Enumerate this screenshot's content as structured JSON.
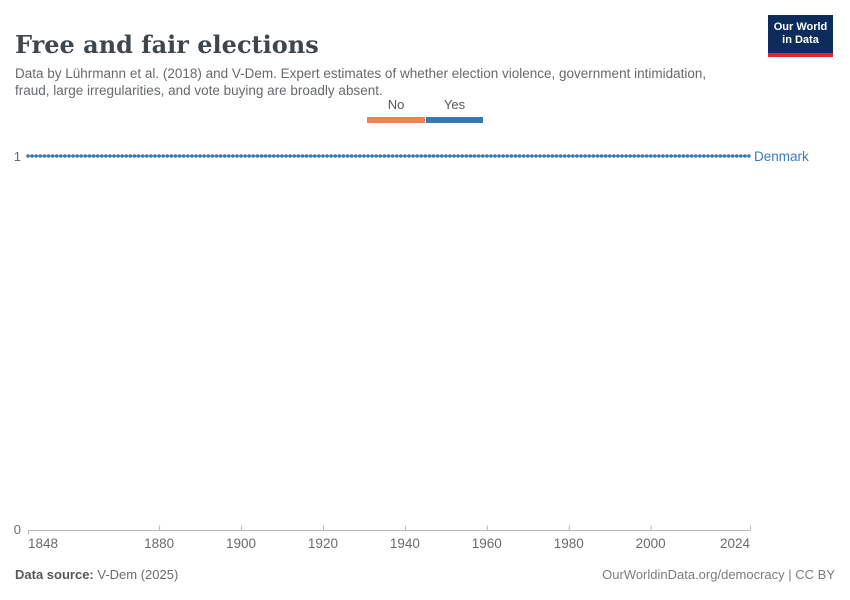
{
  "header": {
    "title": "Free and fair elections",
    "subtitle": "Data by Lührmann et al. (2018) and V-Dem. Expert estimates of whether election violence, government intimidation, fraud, large irregularities, and vote buying are broadly absent.",
    "logo": {
      "line1": "Our World",
      "line2": "in Data",
      "bg_color": "#0c2d5b",
      "accent_color": "#e0262d"
    }
  },
  "legend": {
    "items": [
      {
        "label": "No",
        "color": "#ec8450",
        "width": 58
      },
      {
        "label": "Yes",
        "color": "#3779b0",
        "width": 57
      }
    ]
  },
  "chart_data": {
    "type": "line",
    "title": "Free and fair elections",
    "entity_label": "Denmark",
    "series": [
      {
        "name": "Denmark",
        "color": "#3779b0",
        "x_start": 1848,
        "x_end": 2024,
        "step": 1,
        "constant_value": 1,
        "note": "value is 1 (Yes) for every year from 1848 through 2024"
      }
    ],
    "x_ticks": [
      1848,
      1880,
      1900,
      1920,
      1940,
      1960,
      1980,
      2000,
      2024
    ],
    "y_ticks": [
      0,
      1
    ],
    "xlim": [
      1848,
      2024
    ],
    "ylim": [
      0,
      1
    ],
    "value_labels": {
      "0": "No",
      "1": "Yes"
    },
    "grid": false,
    "legend_position": "top-center",
    "axis_color": "#b8b8b8",
    "tick_label_color": "#6b6b6b"
  },
  "axes": {
    "y_top_label": "1",
    "y_bottom_label": "0"
  },
  "footer": {
    "source_label": "Data source:",
    "source_value": " V-Dem (2025)",
    "right_text": "OurWorldinData.org/democracy | CC BY"
  }
}
